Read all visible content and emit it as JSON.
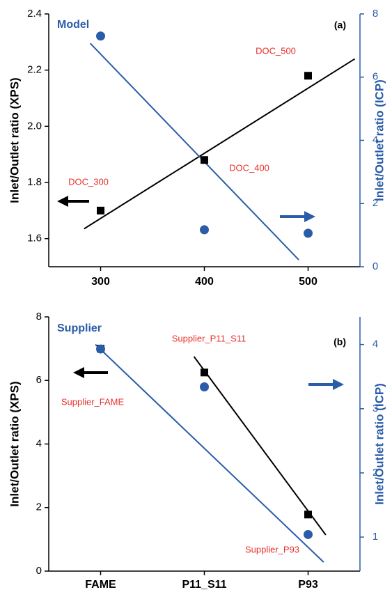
{
  "chart_data": [
    {
      "type": "scatter",
      "title": "Model",
      "panel_label": "(a)",
      "ylabel": "Inlet/Outlet ratio (XPS)",
      "y2label": "Inlet/Outlet ratio (ICP)",
      "xlim": [
        250,
        550
      ],
      "xticks": [
        300,
        400,
        500
      ],
      "ylim": [
        1.5,
        2.4
      ],
      "yticks": [
        1.6,
        1.8,
        {
          "value": 2,
          "label": "2.0"
        },
        2.2,
        2.4
      ],
      "y2lim": [
        0,
        8
      ],
      "y2ticks": [
        0,
        2,
        4,
        6,
        8
      ],
      "annotations": [
        "DOC_300",
        "DOC_400",
        "DOC_500"
      ],
      "series": [
        {
          "type": "scatter",
          "marker": "square",
          "color": "#000000",
          "x": [
            300,
            400,
            500
          ],
          "values": [
            1.7,
            1.88,
            2.18
          ]
        },
        {
          "type": "scatter",
          "marker": "circle",
          "color": "#2a5ca8",
          "axis": "y2",
          "x": [
            300,
            400,
            500
          ],
          "values": [
            7.3,
            1.17,
            1.06
          ]
        },
        {
          "type": "line",
          "color": "#000000",
          "x": [
            284,
            545
          ],
          "values": [
            1.635,
            2.24
          ]
        },
        {
          "type": "line",
          "color": "#2a5ca8",
          "axis": "y2",
          "x": [
            290,
            491
          ],
          "values": [
            7.07,
            0.22
          ]
        }
      ]
    },
    {
      "type": "scatter",
      "title": "Supplier",
      "panel_label": "(b)",
      "ylabel": "Inlet/Outlet ratio (XPS)",
      "y2label": "Inlet/Outlet ratio (ICP)",
      "categories": [
        "FAME",
        "P11_S11",
        "P93"
      ],
      "ylim": [
        0,
        8
      ],
      "yticks": [
        0,
        2,
        4,
        6,
        8
      ],
      "y2lim": [
        0.47,
        4.43
      ],
      "y2ticks": [
        1,
        2,
        3,
        4
      ],
      "annotations": [
        "Supplier_FAME",
        "Supplier_P11_S11",
        "Supplier_P93"
      ],
      "series": [
        {
          "type": "scatter",
          "marker": "square",
          "color": "#000000",
          "values": [
            7.0,
            6.25,
            1.78
          ]
        },
        {
          "type": "scatter",
          "marker": "circle",
          "color": "#2a5ca8",
          "axis": "y2",
          "values": [
            3.93,
            3.34,
            1.04
          ]
        },
        {
          "type": "line",
          "color": "#000000",
          "x": [
            0.9,
            2.17
          ],
          "values": [
            6.75,
            1.14
          ]
        },
        {
          "type": "line",
          "color": "#2a5ca8",
          "axis": "y2",
          "x": [
            -0.05,
            2.15
          ],
          "values": [
            4.0,
            0.61
          ]
        }
      ]
    }
  ]
}
